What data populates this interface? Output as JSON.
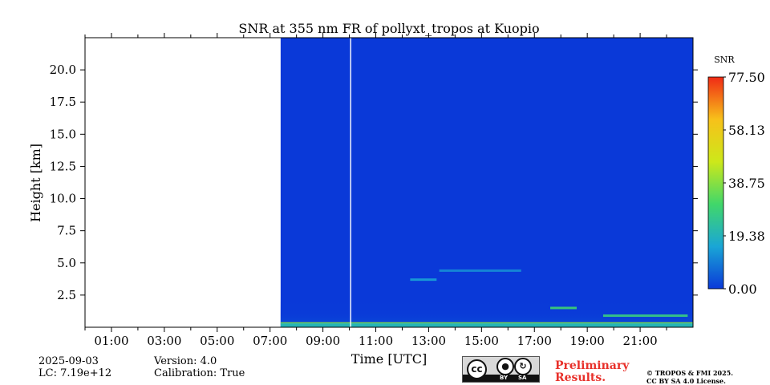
{
  "chart_data": {
    "type": "heatmap",
    "title": "SNR at 355 nm FR of pollyxt_tropos at Kuopio",
    "xlabel": "Time [UTC]",
    "ylabel": "Height [km]",
    "xlim_hours": [
      0,
      23
    ],
    "ylim_km": [
      0,
      22.5
    ],
    "x_ticks": [
      {
        "hour": 1,
        "label": "01:00"
      },
      {
        "hour": 3,
        "label": "03:00"
      },
      {
        "hour": 5,
        "label": "05:00"
      },
      {
        "hour": 7,
        "label": "07:00"
      },
      {
        "hour": 9,
        "label": "09:00"
      },
      {
        "hour": 11,
        "label": "11:00"
      },
      {
        "hour": 13,
        "label": "13:00"
      },
      {
        "hour": 15,
        "label": "15:00"
      },
      {
        "hour": 17,
        "label": "17:00"
      },
      {
        "hour": 19,
        "label": "19:00"
      },
      {
        "hour": 21,
        "label": "21:00"
      }
    ],
    "y_ticks": [
      {
        "value": 2.5,
        "label": "2.5"
      },
      {
        "value": 5.0,
        "label": "5.0"
      },
      {
        "value": 7.5,
        "label": "7.5"
      },
      {
        "value": 10.0,
        "label": "10.0"
      },
      {
        "value": 12.5,
        "label": "12.5"
      },
      {
        "value": 15.0,
        "label": "15.0"
      },
      {
        "value": 17.5,
        "label": "17.5"
      },
      {
        "value": 20.0,
        "label": "20.0"
      }
    ],
    "data_start_hour": 7.4,
    "data_gap_hour": 10.05,
    "background_snr": 0,
    "features": [
      {
        "name": "near-surface high SNR layer",
        "x_start_hour": 7.4,
        "x_end_hour": 23,
        "height_km": 0.3,
        "snr": 38
      },
      {
        "name": "boundary layer top",
        "x_start_hour": 17.6,
        "x_end_hour": 18.6,
        "height_km": 1.5,
        "snr": 30
      },
      {
        "name": "evening aerosol layer",
        "x_start_hour": 19.6,
        "x_end_hour": 22.8,
        "height_km": 0.9,
        "snr": 28
      },
      {
        "name": "afternoon aerosol layer",
        "x_start_hour": 12.3,
        "x_end_hour": 13.3,
        "height_km": 3.7,
        "snr": 15
      },
      {
        "name": "elevated layer",
        "x_start_hour": 13.4,
        "x_end_hour": 16.5,
        "height_km": 4.4,
        "snr": 12
      }
    ],
    "colorbar": {
      "label": "SNR",
      "min": 0.0,
      "max": 77.5,
      "ticks": [
        "0.00",
        "19.38",
        "38.75",
        "58.13",
        "77.50"
      ],
      "colors": [
        "#0a39d8",
        "#1aa6d6",
        "#41d76a",
        "#cde81a",
        "#f7c11a",
        "#f02a15"
      ]
    }
  },
  "footer": {
    "date": "2025-09-03",
    "lc": "LC: 7.19e+12",
    "version": "Version: 4.0",
    "calibration": "Calibration: True",
    "preliminary_line1": "Preliminary",
    "preliminary_line2": "Results.",
    "copyright_line1": "© TROPOS & FMI 2025.",
    "copyright_line2": "CC BY SA 4.0 License.",
    "license_badge": {
      "cc": "cc",
      "by": "BY",
      "sa": "SA"
    }
  }
}
